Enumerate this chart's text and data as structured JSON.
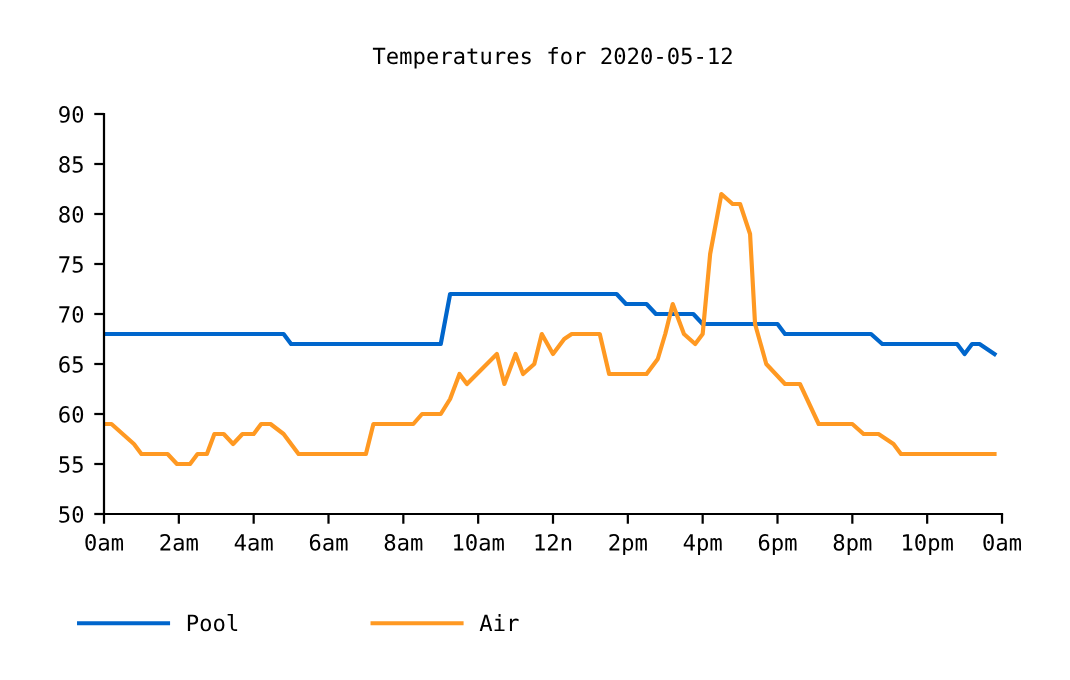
{
  "chart_data": {
    "type": "line",
    "title": "Temperatures for 2020-05-12",
    "xlim": [
      "2020-05-12T00:00",
      "2020-05-13T00:00"
    ],
    "xticks": [
      {
        "value": "2020-05-12T00:00",
        "label": "0am"
      },
      {
        "value": "2020-05-12T02:00",
        "label": "2am"
      },
      {
        "value": "2020-05-12T04:00",
        "label": "4am"
      },
      {
        "value": "2020-05-12T06:00",
        "label": "6am"
      },
      {
        "value": "2020-05-12T08:00",
        "label": "8am"
      },
      {
        "value": "2020-05-12T10:00",
        "label": "10am"
      },
      {
        "value": "2020-05-12T12:00",
        "label": "12n"
      },
      {
        "value": "2020-05-12T14:00",
        "label": "2pm"
      },
      {
        "value": "2020-05-12T16:00",
        "label": "4pm"
      },
      {
        "value": "2020-05-12T18:00",
        "label": "6pm"
      },
      {
        "value": "2020-05-12T20:00",
        "label": "8pm"
      },
      {
        "value": "2020-05-12T22:00",
        "label": "10pm"
      },
      {
        "value": "2020-05-13T00:00",
        "label": "0am"
      }
    ],
    "ylim": [
      50,
      90
    ],
    "yticks": [
      50,
      55,
      60,
      65,
      70,
      75,
      80,
      85,
      90
    ],
    "grid": false,
    "legend": "bottom left",
    "marker": "none",
    "line_style": "solid",
    "series": [
      {
        "name": "Pool",
        "color": "#0066cc",
        "x": [
          "2020-05-12T00:00",
          "2020-05-12T04:48",
          "2020-05-12T05:00",
          "2020-05-12T09:00",
          "2020-05-12T09:15",
          "2020-05-12T13:42",
          "2020-05-12T13:57",
          "2020-05-12T14:30",
          "2020-05-12T14:45",
          "2020-05-12T15:45",
          "2020-05-12T16:00",
          "2020-05-12T18:00",
          "2020-05-12T18:12",
          "2020-05-12T20:30",
          "2020-05-12T20:48",
          "2020-05-12T22:48",
          "2020-05-12T23:00",
          "2020-05-12T23:12",
          "2020-05-12T23:24",
          "2020-05-12T23:48"
        ],
        "values": [
          68,
          68,
          67,
          67,
          72,
          72,
          71,
          71,
          70,
          70,
          69,
          69,
          68,
          68,
          67,
          67,
          66,
          67,
          67,
          66
        ]
      },
      {
        "name": "Air",
        "color": "#ff9922",
        "x": [
          "2020-05-12T00:00",
          "2020-05-12T00:12",
          "2020-05-12T00:30",
          "2020-05-12T00:48",
          "2020-05-12T01:00",
          "2020-05-12T01:42",
          "2020-05-12T01:57",
          "2020-05-12T02:18",
          "2020-05-12T02:30",
          "2020-05-12T02:45",
          "2020-05-12T02:57",
          "2020-05-12T03:12",
          "2020-05-12T03:27",
          "2020-05-12T03:42",
          "2020-05-12T04:00",
          "2020-05-12T04:12",
          "2020-05-12T04:27",
          "2020-05-12T04:48",
          "2020-05-12T05:12",
          "2020-05-12T07:00",
          "2020-05-12T07:12",
          "2020-05-12T08:16",
          "2020-05-12T08:30",
          "2020-05-12T09:00",
          "2020-05-12T09:15",
          "2020-05-12T09:30",
          "2020-05-12T09:42",
          "2020-05-12T10:30",
          "2020-05-12T10:42",
          "2020-05-12T11:00",
          "2020-05-12T11:12",
          "2020-05-12T11:30",
          "2020-05-12T11:42",
          "2020-05-12T12:00",
          "2020-05-12T12:18",
          "2020-05-12T12:30",
          "2020-05-12T13:15",
          "2020-05-12T13:30",
          "2020-05-12T14:30",
          "2020-05-12T14:48",
          "2020-05-12T15:00",
          "2020-05-12T15:12",
          "2020-05-12T15:30",
          "2020-05-12T15:48",
          "2020-05-12T16:00",
          "2020-05-12T16:12",
          "2020-05-12T16:30",
          "2020-05-12T16:48",
          "2020-05-12T17:00",
          "2020-05-12T17:16",
          "2020-05-12T17:24",
          "2020-05-12T17:42",
          "2020-05-12T18:12",
          "2020-05-12T18:36",
          "2020-05-12T19:06",
          "2020-05-12T20:00",
          "2020-05-12T20:18",
          "2020-05-12T20:42",
          "2020-05-12T21:06",
          "2020-05-12T21:18",
          "2020-05-12T23:48"
        ],
        "values": [
          59,
          59,
          58,
          57,
          56,
          56,
          55,
          55,
          56,
          56,
          58,
          58,
          57,
          58,
          58,
          59,
          59,
          58,
          56,
          56,
          59,
          59,
          60,
          60,
          61.5,
          64,
          63,
          66,
          63,
          66,
          64,
          65,
          68,
          66,
          67.5,
          68,
          68,
          64,
          64,
          65.5,
          68,
          71,
          68,
          67,
          68,
          76,
          82,
          81,
          81,
          78,
          69,
          65,
          63,
          63,
          59,
          59,
          58,
          58,
          57,
          56,
          56
        ]
      }
    ]
  }
}
